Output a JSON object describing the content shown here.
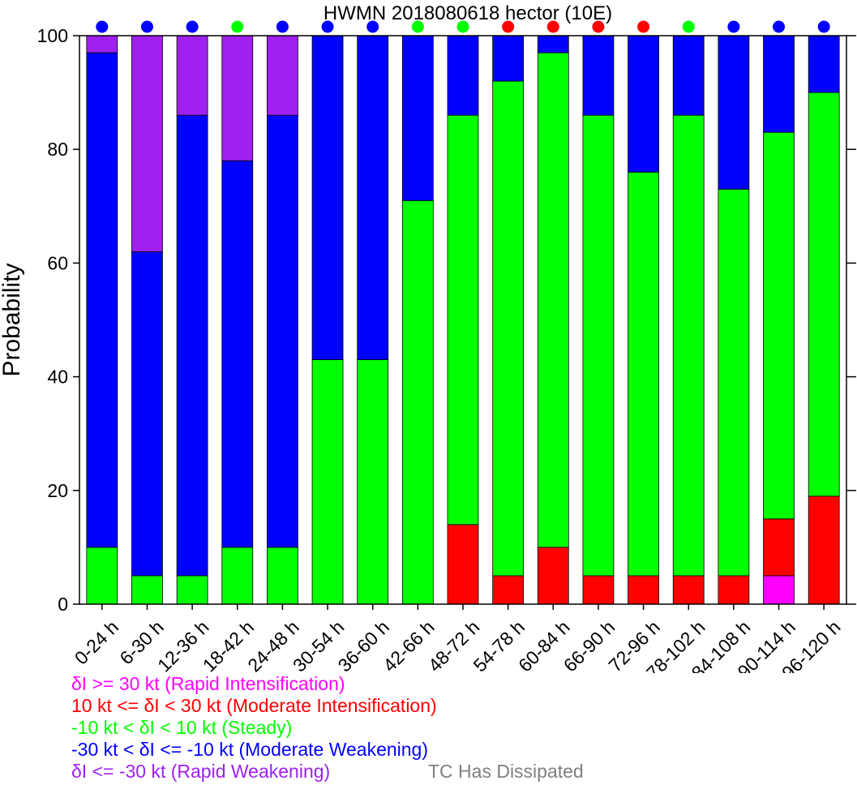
{
  "chart_data": {
    "type": "bar",
    "stacked": true,
    "title": "HWMN 2018080618 hector (10E)",
    "ylabel": "Probability",
    "xlabel": "",
    "ylim": [
      0,
      100
    ],
    "yticks": [
      0,
      20,
      40,
      60,
      80,
      100
    ],
    "grid": false,
    "categories": [
      "0-24 h",
      "6-30 h",
      "12-36 h",
      "18-42 h",
      "24-48 h",
      "30-54 h",
      "36-60 h",
      "42-66 h",
      "48-72 h",
      "54-78 h",
      "60-84 h",
      "66-90 h",
      "72-96 h",
      "78-102 h",
      "84-108 h",
      "90-114 h",
      "96-120 h"
    ],
    "series": [
      {
        "key": "ri",
        "color": "#ff00ff",
        "values": [
          0,
          0,
          0,
          0,
          0,
          0,
          0,
          0,
          0,
          0,
          0,
          0,
          0,
          0,
          0,
          5,
          0
        ]
      },
      {
        "key": "mi",
        "color": "#ff0000",
        "values": [
          0,
          0,
          0,
          0,
          0,
          0,
          0,
          0,
          14,
          5,
          10,
          5,
          5,
          5,
          5,
          10,
          19
        ]
      },
      {
        "key": "steady",
        "color": "#00ff00",
        "values": [
          10,
          5,
          5,
          10,
          10,
          43,
          43,
          71,
          72,
          87,
          87,
          81,
          71,
          81,
          68,
          68,
          71
        ]
      },
      {
        "key": "mw",
        "color": "#0000ff",
        "values": [
          87,
          57,
          81,
          68,
          76,
          57,
          57,
          29,
          14,
          8,
          3,
          14,
          24,
          14,
          27,
          17,
          10
        ]
      },
      {
        "key": "rw",
        "color": "#a020f0",
        "values": [
          3,
          38,
          14,
          22,
          14,
          0,
          0,
          0,
          0,
          0,
          0,
          0,
          0,
          0,
          0,
          0,
          0
        ]
      }
    ],
    "top_markers": [
      "#0000ff",
      "#0000ff",
      "#0000ff",
      "#00ff00",
      "#0000ff",
      "#0000ff",
      "#0000ff",
      "#00ff00",
      "#00ff00",
      "#ff0000",
      "#ff0000",
      "#ff0000",
      "#ff0000",
      "#00ff00",
      "#0000ff",
      "#0000ff",
      "#0000ff"
    ]
  },
  "legend": [
    {
      "text": "δI >= 30 kt (Rapid Intensification)",
      "color": "#ff00ff"
    },
    {
      "text": "10 kt <= δI < 30 kt (Moderate Intensification)",
      "color": "#ff0000"
    },
    {
      "text": "-10 kt < δI < 10 kt (Steady)",
      "color": "#00ff00"
    },
    {
      "text": "-30 kt < δI <= -10 kt (Moderate Weakening)",
      "color": "#0000ff"
    },
    {
      "text": "δI <= -30 kt (Rapid Weakening)",
      "color": "#a020f0"
    }
  ],
  "dissipated_note": {
    "text": "TC Has Dissipated",
    "color": "#808080"
  }
}
